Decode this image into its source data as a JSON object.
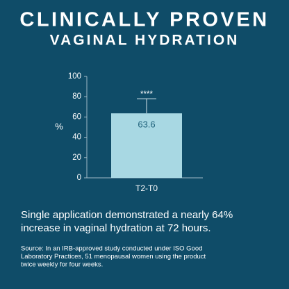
{
  "header": {
    "title": "CLINICALLY PROVEN",
    "subtitle": "VAGINAL HYDRATION"
  },
  "chart_data": {
    "type": "bar",
    "y_label": "%",
    "categories": [
      "T2-T0"
    ],
    "values": [
      63.6
    ],
    "errors": [
      14.4
    ],
    "annotation": "****",
    "color": "#a8d8e3",
    "ylim": [
      0,
      100
    ],
    "yticks": [
      0,
      20,
      40,
      60,
      80,
      100
    ]
  },
  "caption": [
    "Single application demonstrated a nearly 64%",
    "increase in vaginal hydration at 72 hours."
  ],
  "source": [
    "Source: In an IRB-approved study conducted under ISO Good",
    "Laboratory Practices, 51 menopausal women using the product",
    "twice weekly for four weeks."
  ]
}
